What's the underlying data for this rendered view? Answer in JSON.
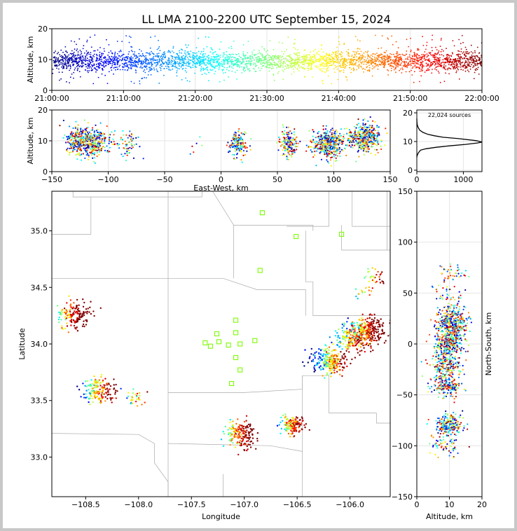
{
  "title": "LL LMA 2100-2200 UTC September 15, 2024",
  "colors": {
    "colormap": "jet",
    "station_marker": "#7cfc00",
    "county_lines": "#aaaaaa"
  },
  "chart_data": [
    {
      "id": "time_height",
      "type": "scatter",
      "ylabel": "Altitude, km",
      "ylim": [
        0,
        20
      ],
      "yticks": [
        "0",
        "10",
        "20"
      ],
      "xlim": [
        0,
        60
      ],
      "xtick_labels": [
        "21:00:00",
        "21:10:00",
        "21:20:00",
        "21:30:00",
        "21:40:00",
        "21:50:00",
        "22:00:00"
      ],
      "color_by": "time",
      "series_mean_altitude_km": 9.5
    },
    {
      "id": "ew_height",
      "type": "scatter",
      "xlabel": "East-West, km",
      "ylabel": "Altitude, km",
      "xlim": [
        -150,
        150
      ],
      "ylim": [
        0,
        20
      ],
      "xtick_labels": [
        "−150",
        "−100",
        "−50",
        "0",
        "50",
        "100",
        "150"
      ],
      "ytick_labels": [
        "0",
        "10",
        "20"
      ],
      "clusters": [
        {
          "x": -125,
          "y": 10,
          "n": 320
        },
        {
          "x": -110,
          "y": 9,
          "n": 220
        },
        {
          "x": -82,
          "y": 8.5,
          "n": 60
        },
        {
          "x": -22,
          "y": 7,
          "n": 6
        },
        {
          "x": 15,
          "y": 9,
          "n": 160
        },
        {
          "x": 60,
          "y": 9,
          "n": 160
        },
        {
          "x": 95,
          "y": 9,
          "n": 420
        },
        {
          "x": 128,
          "y": 11,
          "n": 380
        }
      ]
    },
    {
      "id": "altitude_histogram",
      "type": "line",
      "annotation": "22,024 sources",
      "xlim": [
        0,
        1400
      ],
      "ylim": [
        -0.5,
        21
      ],
      "xtick_labels": [
        "0",
        "1000"
      ],
      "ytick_labels": [
        "0",
        "10",
        "20"
      ],
      "x": [
        0,
        5,
        30,
        80,
        200,
        420,
        700,
        1050,
        1300,
        1400,
        1280,
        900,
        560,
        380,
        240,
        130,
        60,
        25,
        8,
        2,
        0
      ],
      "y": [
        4.5,
        5,
        6,
        7,
        7.5,
        8,
        8.5,
        9,
        9.5,
        9.8,
        10.3,
        11,
        11.5,
        12,
        12.5,
        13.2,
        14,
        15,
        16,
        17,
        18
      ]
    },
    {
      "id": "plan_view",
      "type": "scatter",
      "xlabel": "Longitude",
      "ylabel": "Latitude",
      "xlim": [
        -108.82,
        -105.62
      ],
      "ylim": [
        32.65,
        35.35
      ],
      "xtick_labels": [
        "−108.5",
        "−108.0",
        "−107.5",
        "−107.0",
        "−106.5",
        "−106.0"
      ],
      "ytick_labels": [
        "33.0",
        "33.5",
        "34.0",
        "34.5",
        "35.0"
      ],
      "stations": [
        [
          -106.83,
          35.16
        ],
        [
          -106.51,
          34.95
        ],
        [
          -106.08,
          34.97
        ],
        [
          -106.85,
          34.65
        ],
        [
          -107.26,
          34.09
        ],
        [
          -107.08,
          34.21
        ],
        [
          -107.08,
          34.1
        ],
        [
          -107.37,
          34.01
        ],
        [
          -107.32,
          33.98
        ],
        [
          -107.24,
          34.02
        ],
        [
          -107.15,
          33.99
        ],
        [
          -107.04,
          34.0
        ],
        [
          -106.9,
          34.03
        ],
        [
          -107.08,
          33.88
        ],
        [
          -107.04,
          33.77
        ],
        [
          -107.12,
          33.65
        ]
      ],
      "clusters": [
        {
          "lon": -108.6,
          "lat": 34.26,
          "n": 160
        },
        {
          "lon": -108.38,
          "lat": 33.6,
          "n": 160
        },
        {
          "lon": -108.05,
          "lat": 33.52,
          "n": 30
        },
        {
          "lon": -107.03,
          "lat": 33.2,
          "n": 180
        },
        {
          "lon": -106.55,
          "lat": 33.28,
          "n": 150
        },
        {
          "lon": -106.2,
          "lat": 33.85,
          "n": 260
        },
        {
          "lon": -105.98,
          "lat": 34.05,
          "n": 180
        },
        {
          "lon": -105.83,
          "lat": 34.12,
          "n": 260
        },
        {
          "lon": -105.75,
          "lat": 34.58,
          "n": 30
        },
        {
          "lon": -105.85,
          "lat": 34.45,
          "n": 15
        }
      ]
    },
    {
      "id": "ns_height",
      "type": "scatter",
      "xlabel": "Altitude, km",
      "ylabel": "North-South, km",
      "xlim": [
        0,
        20
      ],
      "ylim": [
        -150,
        150
      ],
      "xtick_labels": [
        "0",
        "10",
        "20"
      ],
      "ytick_labels": [
        "−150",
        "−100",
        "−50",
        "0",
        "50",
        "100",
        "150"
      ],
      "clusters": [
        {
          "y": 69,
          "x": 11,
          "n": 40
        },
        {
          "y": 50,
          "x": 9,
          "n": 30
        },
        {
          "y": 20,
          "x": 11,
          "n": 420
        },
        {
          "y": 0,
          "x": 10,
          "n": 200
        },
        {
          "y": -20,
          "x": 9,
          "n": 260
        },
        {
          "y": -42,
          "x": 9,
          "n": 150
        },
        {
          "y": -80,
          "x": 10,
          "n": 200
        },
        {
          "y": -100,
          "x": 9,
          "n": 60
        }
      ]
    }
  ]
}
